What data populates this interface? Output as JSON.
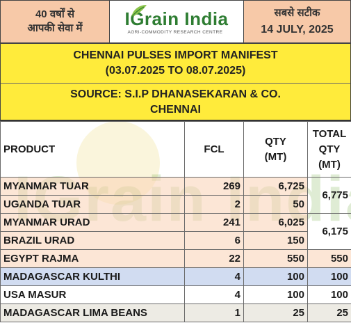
{
  "header": {
    "left_line1": "40 वर्षों से",
    "left_line2": "आपकी सेवा में",
    "logo_name": "IGrain India",
    "logo_tagline": "AGRI-COMMODITY RESEARCH CENTRE",
    "right_line1": "सबसे सटीक",
    "date": "14 JULY, 2025"
  },
  "title": {
    "line1": "CHENNAI PULSES IMPORT MANIFEST",
    "line2": "(03.07.2025 TO 08.07.2025)",
    "source_line1": "SOURCE: S.I.P DHANASEKARAN & CO.",
    "source_line2": "CHENNAI"
  },
  "table": {
    "headers": {
      "product": "PRODUCT",
      "fcl": "FCL",
      "qty_line1": "QTY",
      "qty_line2": "(MT)",
      "total_line1": "TOTAL",
      "total_line2": "QTY",
      "total_line3": "(MT)"
    },
    "rows": [
      {
        "product": "MYANMAR TUAR",
        "fcl": "269",
        "qty": "6,725"
      },
      {
        "product": "UGANDA TUAR",
        "fcl": "2",
        "qty": "50"
      },
      {
        "product": "MYANMAR URAD",
        "fcl": "241",
        "qty": "6,025"
      },
      {
        "product": "BRAZIL URAD",
        "fcl": "6",
        "qty": "150"
      },
      {
        "product": "EGYPT RAJMA",
        "fcl": "22",
        "qty": "550"
      },
      {
        "product": "MADAGASCAR KULTHI",
        "fcl": "4",
        "qty": "100"
      },
      {
        "product": "USA MASUR",
        "fcl": "4",
        "qty": "100"
      },
      {
        "product": "MADAGASCAR LIMA BEANS",
        "fcl": "1",
        "qty": "25"
      }
    ],
    "totals": {
      "tuar": "6,775",
      "urad": "6,175",
      "rajma": "550",
      "kulthi": "100",
      "masur": "100",
      "lima": "25"
    }
  },
  "watermark": "IGrain India",
  "colors": {
    "header_box": "#f7c9a8",
    "title_band": "#ffeb3b",
    "logo_green": "#2e7d32",
    "row_peach": "#fad2b4",
    "row_blue": "#becdeb"
  }
}
